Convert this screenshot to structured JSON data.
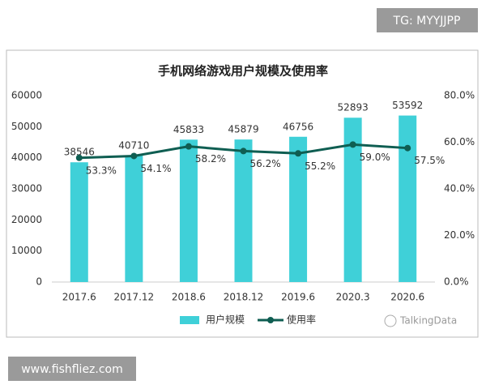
{
  "chart_data": {
    "type": "bar-line",
    "title": "手机网络游戏用户规模及使用率",
    "categories": [
      "2017.6",
      "2017.12",
      "2018.6",
      "2018.12",
      "2019.6",
      "2020.3",
      "2020.6"
    ],
    "series": [
      {
        "name": "用户规模",
        "type": "bar",
        "color": "#3fd0d8",
        "values": [
          38546,
          40710,
          45833,
          45879,
          46756,
          52893,
          53592
        ]
      },
      {
        "name": "使用率",
        "type": "line",
        "axis": "y2",
        "color": "#0f5e52",
        "values": [
          53.3,
          54.1,
          58.2,
          56.2,
          55.2,
          59.0,
          57.5
        ],
        "value_labels": [
          "53.3%",
          "54.1%",
          "58.2%",
          "56.2%",
          "55.2%",
          "59.0%",
          "57.5%"
        ]
      }
    ],
    "ylim": [
      0,
      60000
    ],
    "yticks": [
      0,
      10000,
      20000,
      30000,
      40000,
      50000,
      60000
    ],
    "y2lim": [
      0,
      80
    ],
    "y2ticks": [
      {
        "value": 0,
        "label": "0.0%"
      },
      {
        "value": 20,
        "label": "20.0%"
      },
      {
        "value": 40,
        "label": "40.0%"
      },
      {
        "value": 60,
        "label": "60.0%"
      },
      {
        "value": 80,
        "label": "80.0%"
      }
    ],
    "grid": false
  },
  "watermarks": {
    "top_right": "TG: MYYJJPP",
    "bottom_left": "www.fishfliez.com",
    "logo": "TalkingData"
  }
}
